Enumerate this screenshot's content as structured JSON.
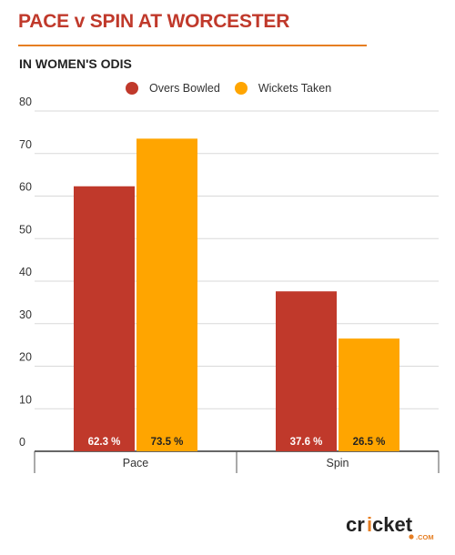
{
  "header": {
    "title": "PACE v SPIN AT WORCESTER",
    "subtitle": "IN WOMEN'S ODIS"
  },
  "colors": {
    "title": "#c0392b",
    "rule": "#e67e22",
    "overs": "#c0392b",
    "wickets": "#ffa500"
  },
  "chart_data": {
    "type": "bar",
    "categories": [
      "Pace",
      "Spin"
    ],
    "series": [
      {
        "name": "Overs Bowled",
        "values": [
          62.3,
          37.6
        ],
        "labels": [
          "62.3 %",
          "37.6 %"
        ],
        "color": "#c0392b"
      },
      {
        "name": "Wickets Taken",
        "values": [
          73.5,
          26.5
        ],
        "labels": [
          "73.5 %",
          "26.5 %"
        ],
        "color": "#ffa500"
      }
    ],
    "yticks": [
      "0",
      "10",
      "20",
      "30",
      "40",
      "50",
      "60",
      "70",
      "80"
    ],
    "ylim": [
      0,
      80
    ],
    "grid": true,
    "legend_position": "top"
  },
  "brand": {
    "name": "cricket",
    "suffix": ".COM"
  }
}
